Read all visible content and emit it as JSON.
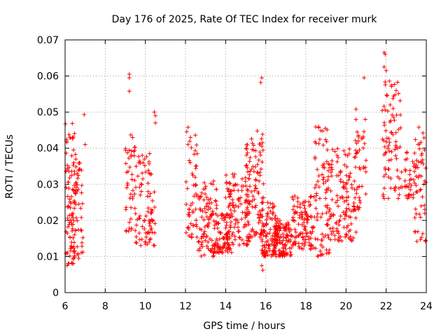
{
  "chart_data": {
    "type": "scatter",
    "title": "Day 176 of 2025, Rate Of TEC Index for receiver murk",
    "xlabel": "GPS time / hours",
    "ylabel": "ROTI / TECUs",
    "xlim": [
      6,
      24
    ],
    "ylim": [
      0,
      0.07
    ],
    "xticks": [
      6,
      8,
      10,
      12,
      14,
      16,
      18,
      20,
      22,
      24
    ],
    "xtick_labels": [
      "6",
      "8",
      "10",
      "12",
      "14",
      "16",
      "18",
      "20",
      "22",
      "24"
    ],
    "yticks": [
      0,
      0.01,
      0.02,
      0.03,
      0.04,
      0.05,
      0.06,
      0.07
    ],
    "ytick_labels": [
      "0",
      "0.01",
      "0.02",
      "0.03",
      "0.04",
      "0.05",
      "0.06",
      "0.07"
    ],
    "grid": true,
    "marker": "+",
    "marker_color": "#ff0000",
    "clusters": [
      {
        "x0": 6.0,
        "x1": 6.55,
        "y0": 0.008,
        "y1": 0.047,
        "n": 90
      },
      {
        "x0": 6.3,
        "x1": 6.9,
        "y0": 0.009,
        "y1": 0.036,
        "n": 50
      },
      {
        "x0": 9.0,
        "x1": 9.5,
        "y0": 0.017,
        "y1": 0.044,
        "n": 45
      },
      {
        "x0": 9.5,
        "x1": 10.5,
        "y0": 0.013,
        "y1": 0.039,
        "n": 85
      },
      {
        "x0": 12.0,
        "x1": 12.6,
        "y0": 0.015,
        "y1": 0.046,
        "n": 55
      },
      {
        "x0": 12.6,
        "x1": 13.6,
        "y0": 0.01,
        "y1": 0.031,
        "n": 95
      },
      {
        "x0": 13.4,
        "x1": 14.3,
        "y0": 0.011,
        "y1": 0.022,
        "n": 85
      },
      {
        "x0": 14.0,
        "x1": 15.2,
        "y0": 0.013,
        "y1": 0.033,
        "n": 110
      },
      {
        "x0": 15.0,
        "x1": 15.9,
        "y0": 0.015,
        "y1": 0.045,
        "n": 110
      },
      {
        "x0": 15.8,
        "x1": 16.6,
        "y0": 0.01,
        "y1": 0.025,
        "n": 100
      },
      {
        "x0": 16.4,
        "x1": 17.3,
        "y0": 0.01,
        "y1": 0.02,
        "n": 110
      },
      {
        "x0": 17.2,
        "x1": 18.4,
        "y0": 0.012,
        "y1": 0.027,
        "n": 110
      },
      {
        "x0": 18.4,
        "x1": 19.2,
        "y0": 0.01,
        "y1": 0.046,
        "n": 90
      },
      {
        "x0": 19.2,
        "x1": 20.5,
        "y0": 0.014,
        "y1": 0.04,
        "n": 120
      },
      {
        "x0": 20.4,
        "x1": 21.0,
        "y0": 0.022,
        "y1": 0.048,
        "n": 45
      },
      {
        "x0": 21.8,
        "x1": 22.8,
        "y0": 0.026,
        "y1": 0.059,
        "n": 85
      },
      {
        "x0": 22.9,
        "x1": 23.5,
        "y0": 0.026,
        "y1": 0.039,
        "n": 35
      },
      {
        "x0": 23.4,
        "x1": 24.0,
        "y0": 0.014,
        "y1": 0.046,
        "n": 55
      }
    ],
    "points": [
      [
        6.95,
        0.0493
      ],
      [
        7.0,
        0.041
      ],
      [
        9.2,
        0.0605
      ],
      [
        9.2,
        0.0595
      ],
      [
        9.2,
        0.0558
      ],
      [
        10.45,
        0.05
      ],
      [
        10.5,
        0.049
      ],
      [
        10.5,
        0.047
      ],
      [
        15.8,
        0.0595
      ],
      [
        15.75,
        0.0582
      ],
      [
        15.85,
        0.0062
      ],
      [
        15.8,
        0.0075
      ],
      [
        20.5,
        0.0508
      ],
      [
        20.9,
        0.0595
      ],
      [
        21.9,
        0.0665
      ],
      [
        21.95,
        0.066
      ],
      [
        21.9,
        0.0625
      ],
      [
        22.0,
        0.0615
      ],
      [
        22.05,
        0.0545
      ],
      [
        22.2,
        0.052
      ],
      [
        22.35,
        0.051
      ],
      [
        6.1,
        0.0075
      ],
      [
        6.15,
        0.008
      ]
    ]
  }
}
